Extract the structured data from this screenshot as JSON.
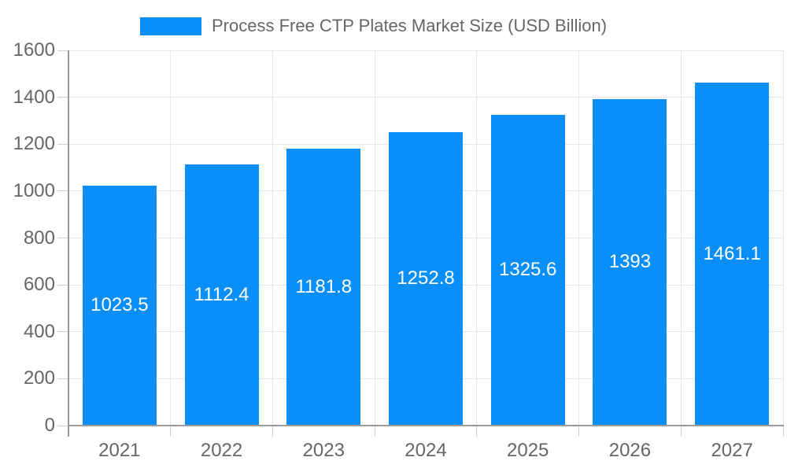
{
  "legend": {
    "label": "Process Free CTP Plates Market Size (USD Billion)",
    "position": "top"
  },
  "chart_data": {
    "type": "bar",
    "title": "Process Free CTP Plates Market Size (USD Billion)",
    "series_name": "Process Free CTP Plates Market Size (USD Billion)",
    "categories": [
      "2021",
      "2022",
      "2023",
      "2024",
      "2025",
      "2026",
      "2027"
    ],
    "values": [
      1023.5,
      1112.4,
      1181.8,
      1252.8,
      1325.6,
      1393,
      1461.1
    ],
    "xlabel": "",
    "ylabel": "",
    "ylim": [
      0,
      1600
    ],
    "ytick_step": 200,
    "yticks": [
      0,
      200,
      400,
      600,
      800,
      1000,
      1200,
      1400,
      1600
    ],
    "grid": true,
    "legend_position": "top",
    "bar_color": "#0a8ff9",
    "value_label_color": "#ffffff"
  },
  "colors": {
    "background": "#ffffff",
    "bar": "#0a8ff9",
    "grid": "#e6e6e6",
    "tick": "#d0d0d0",
    "axis": "#999999",
    "text": "#666666",
    "value_label": "#ffffff"
  }
}
